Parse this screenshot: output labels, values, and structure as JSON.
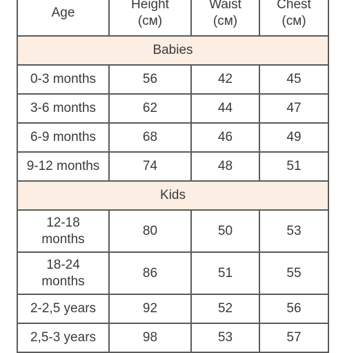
{
  "columns": [
    {
      "label": "Age",
      "unit": ""
    },
    {
      "label": "Height",
      "unit": "(см)"
    },
    {
      "label": "Waist",
      "unit": "(см)"
    },
    {
      "label": "Chest",
      "unit": "(см)"
    }
  ],
  "sections": {
    "babies": {
      "title": "Babies",
      "rows": [
        {
          "age": "0-3 months",
          "height": "56",
          "waist": "42",
          "chest": "45"
        },
        {
          "age": "3-6 months",
          "height": "62",
          "waist": "44",
          "chest": "47"
        },
        {
          "age": "6-9 months",
          "height": "68",
          "waist": "46",
          "chest": "49"
        },
        {
          "age": "9-12 months",
          "height": "74",
          "waist": "48",
          "chest": "51"
        }
      ]
    },
    "kids": {
      "title": "Kids",
      "rows": [
        {
          "age_line1": "12-18",
          "age_line2": "months",
          "height": "80",
          "waist": "50",
          "chest": "53"
        },
        {
          "age_line1": "18-24",
          "age_line2": "months",
          "height": "86",
          "waist": "51",
          "chest": "55"
        },
        {
          "age": "2-2,5 years",
          "height": "92",
          "waist": "52",
          "chest": "56"
        },
        {
          "age": "2,5-3 years",
          "height": "98",
          "waist": "53",
          "chest": "57"
        }
      ]
    }
  },
  "colors": {
    "border": "#5a5a5a",
    "section_background": "#fdeee4",
    "text": "#3a3a3a"
  }
}
